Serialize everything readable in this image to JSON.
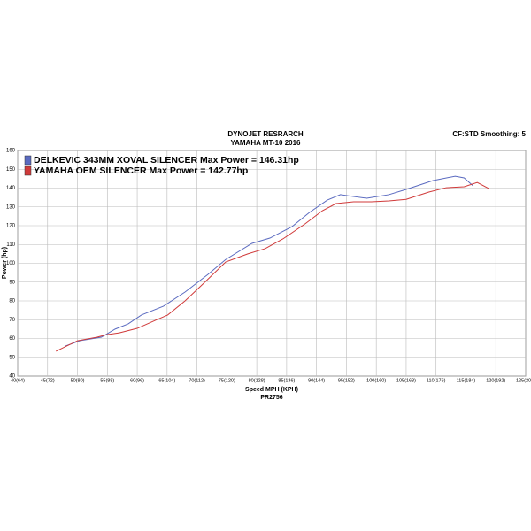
{
  "chart_data": {
    "type": "line",
    "title": "DYNOJET RESRARCH",
    "subtitle": "YAMAHA MT-10 2016",
    "corner_note": "CF:STD Smoothing: 5",
    "x_label": "Speed MPH (KPH)",
    "run_id": "PR2756",
    "y_label": "Power (hp)",
    "grid": true,
    "legend": "top-left",
    "xlim": [
      40,
      125
    ],
    "xticks": [
      {
        "value": 40,
        "label": "40(64)"
      },
      {
        "value": 45,
        "label": "45(72)"
      },
      {
        "value": 50,
        "label": "50(80)"
      },
      {
        "value": 55,
        "label": "55(88)"
      },
      {
        "value": 60,
        "label": "60(96)"
      },
      {
        "value": 65,
        "label": "65(104)"
      },
      {
        "value": 70,
        "label": "70(112)"
      },
      {
        "value": 75,
        "label": "75(120)"
      },
      {
        "value": 80,
        "label": "80(128)"
      },
      {
        "value": 85,
        "label": "85(136)"
      },
      {
        "value": 90,
        "label": "90(144)"
      },
      {
        "value": 95,
        "label": "95(152)"
      },
      {
        "value": 100,
        "label": "100(160)"
      },
      {
        "value": 105,
        "label": "105(168)"
      },
      {
        "value": 110,
        "label": "110(176)"
      },
      {
        "value": 115,
        "label": "115(184)"
      },
      {
        "value": 120,
        "label": "120(192)"
      },
      {
        "value": 125,
        "label": "125(201)"
      }
    ],
    "ylim": [
      40,
      160
    ],
    "yticks": [
      40,
      50,
      60,
      70,
      80,
      90,
      100,
      110,
      120,
      130,
      140,
      150,
      160
    ],
    "series": [
      {
        "name": "DELKEVIC 343MM XOVAL SILENCER Max Power = 146.31hp",
        "color": "#5a6ac0",
        "x": [
          48,
          50.4,
          54,
          56.3,
          58.5,
          60.7,
          64.4,
          68,
          71.8,
          74.8,
          79.2,
          82.2,
          85.9,
          88.8,
          91.8,
          94,
          96.2,
          98.4,
          102.1,
          105,
          109.5,
          113.2,
          114.7,
          116.2
        ],
        "values": [
          56,
          58.8,
          60.7,
          65,
          67.8,
          72.5,
          77.2,
          84.7,
          94,
          102,
          110.6,
          113.4,
          119.5,
          127,
          133.6,
          136.5,
          135.5,
          134.6,
          136.5,
          139.3,
          144,
          146.3,
          145.4,
          141.2
        ]
      },
      {
        "name": "YAMAHA OEM SILENCER Max Power = 142.77hp",
        "color": "#d03a3a",
        "x": [
          46.4,
          50,
          53.3,
          54.8,
          57,
          60,
          63,
          65.1,
          68,
          71,
          74.8,
          78.5,
          81.4,
          84.4,
          88.1,
          91,
          93.3,
          96.2,
          99.2,
          102.1,
          105,
          108.8,
          111.7,
          114.7,
          116.9,
          118.8
        ],
        "values": [
          53.2,
          58.8,
          60.7,
          62,
          63,
          65.4,
          69.6,
          72.5,
          80,
          89,
          100.7,
          105,
          107.8,
          113,
          121,
          128,
          131.8,
          132.7,
          132.7,
          133.2,
          134,
          137.9,
          140.2,
          140.7,
          143,
          139.8
        ]
      }
    ]
  }
}
